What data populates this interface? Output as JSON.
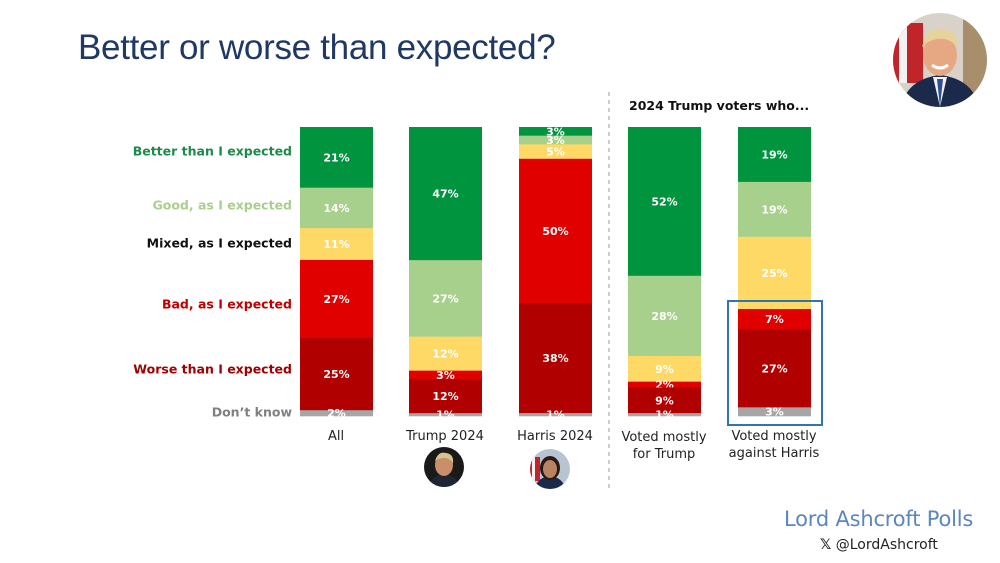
{
  "header": {
    "title": "Better or worse than expected?"
  },
  "chart_data": {
    "type": "bar",
    "stacked": true,
    "orientation": "vertical",
    "title": "Better or worse than expected?",
    "categories": [
      "All",
      "Trump 2024",
      "Harris 2024",
      "Voted mostly for Trump",
      "Voted mostly against Harris"
    ],
    "category_lines": [
      [
        "All"
      ],
      [
        "Trump 2024"
      ],
      [
        "Harris 2024"
      ],
      [
        "Voted mostly",
        "for Trump"
      ],
      [
        "Voted mostly",
        "against Harris"
      ]
    ],
    "subgroup_title": "2024 Trump voters who...",
    "subgroup_categories": [
      "Voted mostly for Trump",
      "Voted mostly against Harris"
    ],
    "highlighted": {
      "category": "Voted mostly against Harris",
      "series": [
        "Bad, as I expected",
        "Worse than I expected",
        "Don't know"
      ]
    },
    "series": [
      {
        "name": "Better than I expected",
        "color": "#00943f",
        "label_color": "#1e8a4a",
        "values": [
          21,
          47,
          3,
          52,
          19
        ]
      },
      {
        "name": "Good, as I expected",
        "color": "#a8d08d",
        "label_color": "#a8d08d",
        "values": [
          14,
          27,
          3,
          28,
          19
        ]
      },
      {
        "name": "Mixed, as I expected",
        "color": "#ffd966",
        "label_color": "#111111",
        "values": [
          11,
          12,
          5,
          9,
          25
        ]
      },
      {
        "name": "Bad, as I expected",
        "color": "#e00000",
        "label_color": "#c00000",
        "values": [
          27,
          3,
          50,
          2,
          7
        ]
      },
      {
        "name": "Worse than I expected",
        "color": "#b00000",
        "label_color": "#a00000",
        "values": [
          25,
          12,
          38,
          9,
          27
        ]
      },
      {
        "name": "Don't know",
        "color": "#a6a6a6",
        "label_color": "#808080",
        "values": [
          2,
          1,
          1,
          1,
          3
        ]
      }
    ],
    "value_suffix": "%",
    "ylim": [
      0,
      100
    ],
    "legend": "left",
    "grid": false
  },
  "legend_labels": [
    "Better than I expected",
    "Good, as I expected",
    "Mixed, as I expected",
    "Bad, as I expected",
    "Worse than I expected",
    "Don’t know"
  ],
  "images": {
    "header_photo": "donald-trump-portrait",
    "trump_photo": "donald-trump-portrait",
    "harris_photo": "kamala-harris-portrait"
  },
  "footer": {
    "brand": "Lord Ashcroft Polls",
    "handle_icon": "x-logo-icon",
    "handle": "@LordAshcroft"
  }
}
